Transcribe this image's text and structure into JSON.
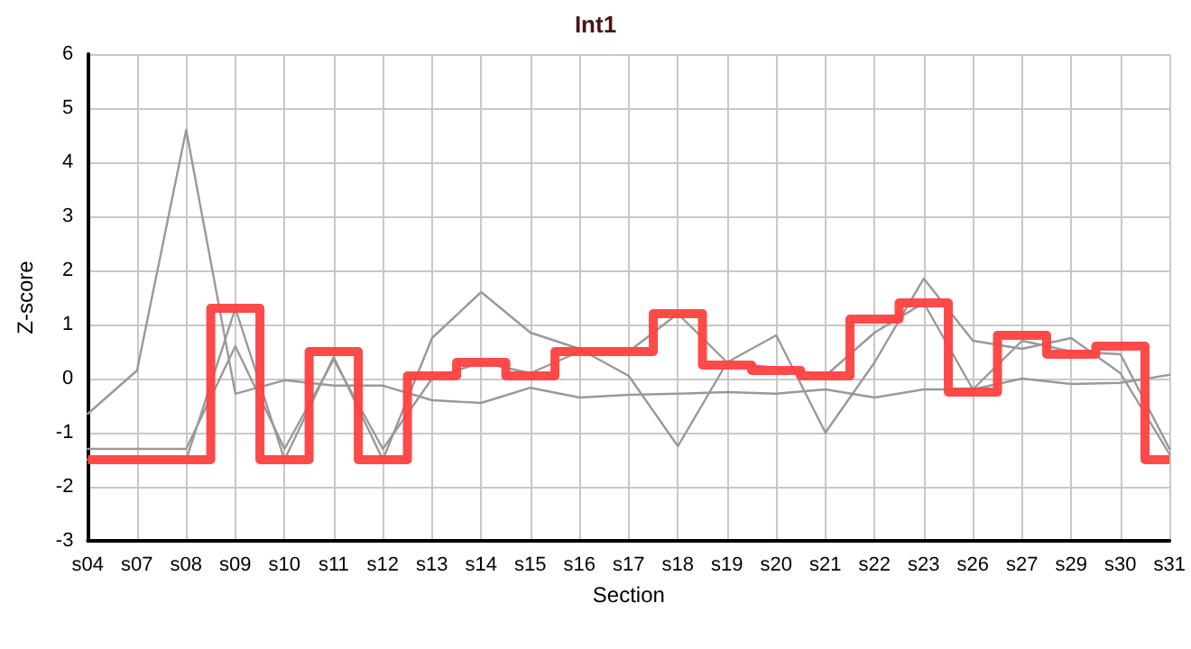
{
  "chart_data": {
    "type": "line",
    "title": "Int1",
    "xlabel": "Section",
    "ylabel": "Z-score",
    "categories": [
      "s04",
      "s07",
      "s08",
      "s09",
      "s10",
      "s11",
      "s12",
      "s13",
      "s14",
      "s15",
      "s16",
      "s17",
      "s18",
      "s19",
      "s20",
      "s21",
      "s22",
      "s23",
      "s26",
      "s27",
      "s29",
      "s30",
      "s31"
    ],
    "series": [
      {
        "color": "#999999",
        "values": [
          -0.65,
          0.15,
          4.6,
          -0.28,
          -0.03,
          -0.13,
          -0.13,
          -0.4,
          -0.45,
          -0.17,
          -0.35,
          -0.3,
          -0.28,
          -0.25,
          -0.28,
          -0.2,
          -0.35,
          -0.2,
          -0.2,
          0.0,
          -0.1,
          -0.08,
          0.07
        ]
      },
      {
        "color": "#999999",
        "values": [
          -1.3,
          -1.3,
          -1.3,
          0.6,
          -1.3,
          0.35,
          -1.3,
          0.0,
          0.3,
          0.1,
          0.5,
          0.5,
          1.2,
          0.3,
          0.2,
          0.05,
          0.85,
          1.4,
          -0.2,
          0.7,
          0.5,
          0.45,
          -1.3
        ]
      },
      {
        "color": "#999999",
        "values": [
          -1.5,
          -1.5,
          -1.5,
          1.3,
          -1.5,
          0.4,
          -1.5,
          0.75,
          1.6,
          0.85,
          0.55,
          0.05,
          -1.25,
          0.3,
          0.8,
          -1.0,
          0.3,
          1.85,
          0.7,
          0.55,
          0.75,
          0.1,
          -1.4
        ]
      },
      {
        "type": "step",
        "color": "#ff4040",
        "values": [
          -1.5,
          -1.5,
          -1.5,
          1.3,
          -1.5,
          0.5,
          -1.5,
          0.05,
          0.3,
          0.05,
          0.5,
          0.5,
          1.2,
          0.25,
          0.15,
          0.05,
          1.1,
          1.4,
          -0.25,
          0.8,
          0.45,
          0.6,
          -1.5
        ]
      }
    ],
    "ylim": [
      -3,
      6
    ],
    "yticks": [
      -3,
      -2,
      -1,
      0,
      1,
      2,
      3,
      4,
      5,
      6
    ],
    "grid": true,
    "marker": "none",
    "line_style": "solid"
  }
}
